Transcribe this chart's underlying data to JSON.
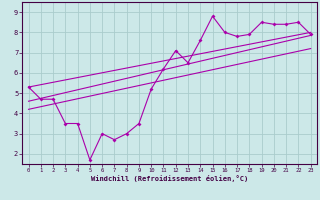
{
  "xlabel": "Windchill (Refroidissement éolien,°C)",
  "background_color": "#cce8e8",
  "line_color": "#aa00aa",
  "grid_color": "#aacccc",
  "xlim": [
    -0.5,
    23.5
  ],
  "ylim": [
    1.5,
    9.5
  ],
  "yticks": [
    2,
    3,
    4,
    5,
    6,
    7,
    8,
    9
  ],
  "xticks": [
    0,
    1,
    2,
    3,
    4,
    5,
    6,
    7,
    8,
    9,
    10,
    11,
    12,
    13,
    14,
    15,
    16,
    17,
    18,
    19,
    20,
    21,
    22,
    23
  ],
  "series": [
    [
      0,
      5.3
    ],
    [
      1,
      4.7
    ],
    [
      2,
      4.7
    ],
    [
      3,
      3.5
    ],
    [
      4,
      3.5
    ],
    [
      5,
      1.7
    ],
    [
      6,
      3.0
    ],
    [
      7,
      2.7
    ],
    [
      8,
      3.0
    ],
    [
      9,
      3.5
    ],
    [
      10,
      5.2
    ],
    [
      11,
      6.2
    ],
    [
      12,
      7.1
    ],
    [
      13,
      6.5
    ],
    [
      14,
      7.6
    ],
    [
      15,
      8.8
    ],
    [
      16,
      8.0
    ],
    [
      17,
      7.8
    ],
    [
      18,
      7.9
    ],
    [
      19,
      8.5
    ],
    [
      20,
      8.4
    ],
    [
      21,
      8.4
    ],
    [
      22,
      8.5
    ],
    [
      23,
      7.9
    ]
  ],
  "line1": [
    [
      0,
      5.3
    ],
    [
      23,
      8.0
    ]
  ],
  "line2": [
    [
      0,
      4.6
    ],
    [
      23,
      7.85
    ]
  ],
  "line3": [
    [
      0,
      4.2
    ],
    [
      23,
      7.2
    ]
  ]
}
